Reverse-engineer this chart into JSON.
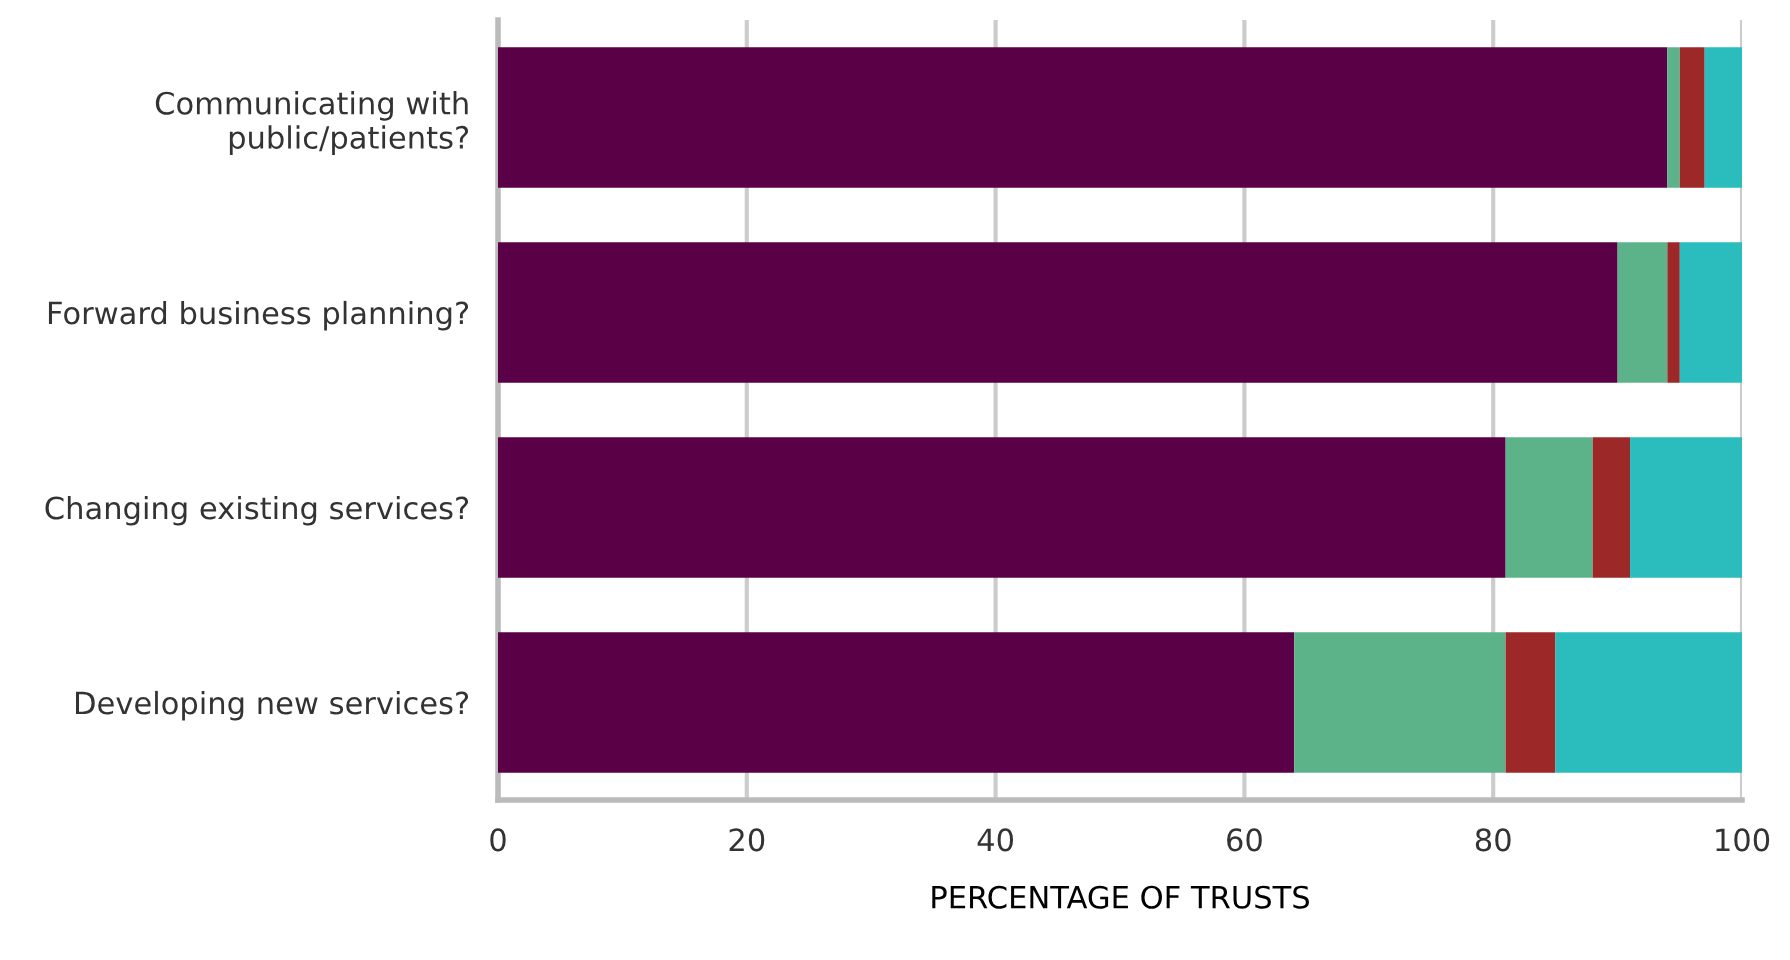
{
  "chart_data": {
    "type": "bar",
    "orientation": "horizontal",
    "stacked": true,
    "categories": [
      "Communicating with\npublic/patients?",
      "Forward business planning?",
      "Changing existing services?",
      "Developing new services?"
    ],
    "series": [
      {
        "color": "#5a0046",
        "values": [
          94,
          90,
          81,
          64
        ]
      },
      {
        "color": "#5cb38a",
        "values": [
          1,
          4,
          7,
          17
        ]
      },
      {
        "color": "#9c2828",
        "values": [
          2,
          1,
          3,
          4
        ]
      },
      {
        "color": "#2bbdbd",
        "values": [
          3,
          5,
          9,
          15
        ]
      }
    ],
    "xlim": [
      0,
      100
    ],
    "xticks": [
      0,
      20,
      40,
      60,
      80,
      100
    ],
    "xlabel": "PERCENTAGE OF TRUSTS",
    "grid": "x",
    "legend": false
  }
}
